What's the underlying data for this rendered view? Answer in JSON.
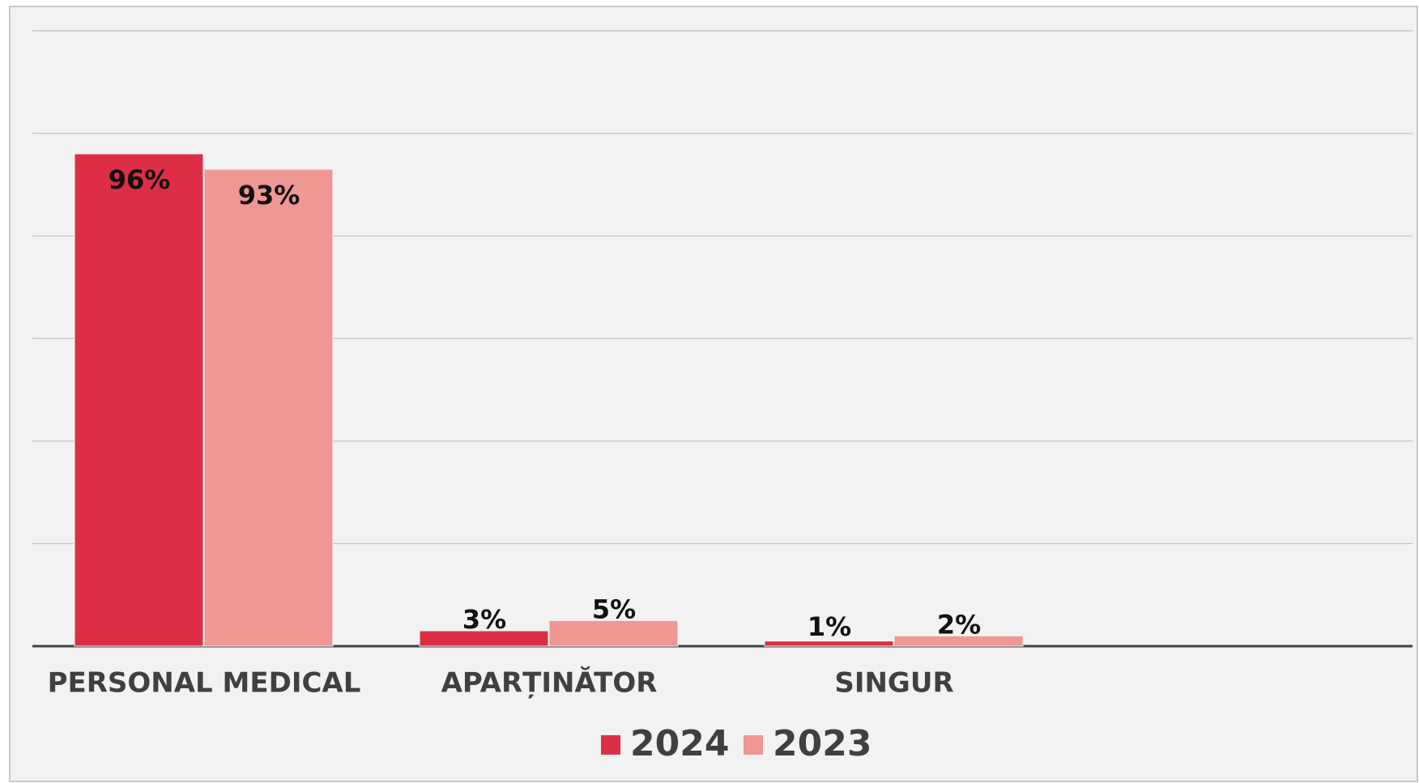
{
  "chart_data": {
    "type": "bar",
    "categories": [
      "PERSONAL MEDICAL",
      "APARȚINĂTOR",
      "SINGUR"
    ],
    "series": [
      {
        "name": "2024",
        "color": "#dc2f45",
        "values": [
          96,
          3,
          1
        ],
        "value_labels": [
          "96%",
          "3%",
          "1%"
        ]
      },
      {
        "name": "2023",
        "color": "#ef9793",
        "values": [
          93,
          5,
          2
        ],
        "value_labels": [
          "93%",
          "5%",
          "2%"
        ]
      }
    ],
    "ylim": [
      0,
      120
    ],
    "yticks": [
      0,
      20,
      40,
      60,
      80,
      100,
      120
    ],
    "grid": true,
    "legend": "bottom"
  }
}
